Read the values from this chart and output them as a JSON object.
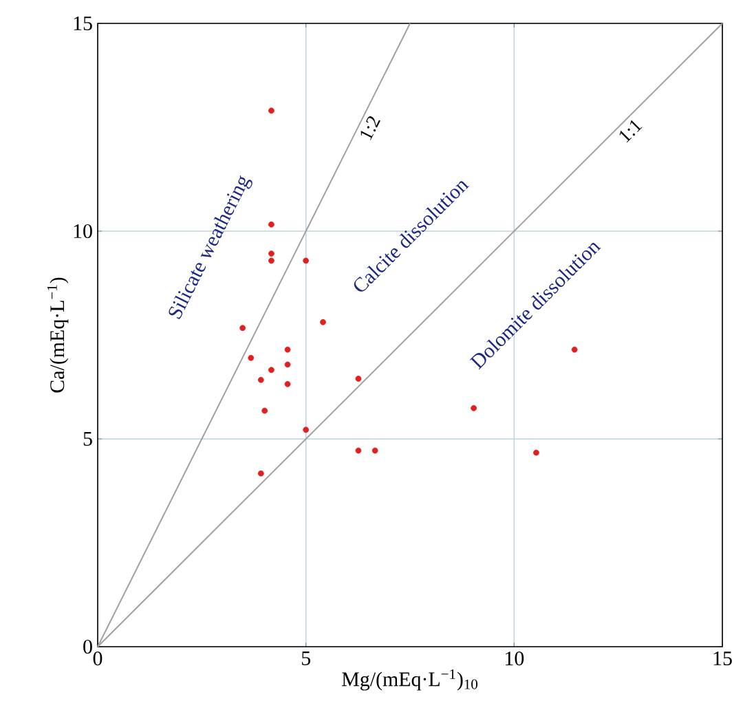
{
  "chart_data": {
    "type": "scatter",
    "xlabel": "Mg/(mEq·L$^{−1}$)$_{10}$",
    "ylabel": "Ca/(mEq·L$^{−1}$)",
    "xlim": [
      0,
      15
    ],
    "ylim": [
      0,
      15
    ],
    "xticks": [
      0,
      5,
      10,
      15
    ],
    "yticks": [
      0,
      5,
      10,
      15
    ],
    "grid": true,
    "series": [
      {
        "marker": "circle",
        "color": "#e02020",
        "x": [
          4.17,
          4.17,
          4.17,
          4.17,
          5.0,
          3.48,
          5.41,
          3.68,
          4.56,
          4.56,
          4.17,
          3.92,
          4.56,
          6.26,
          4.01,
          5.0,
          6.26,
          6.66,
          3.92,
          11.45,
          9.03,
          10.53
        ],
        "values": [
          12.9,
          10.16,
          9.46,
          9.29,
          9.29,
          7.67,
          7.81,
          6.95,
          7.15,
          6.79,
          6.66,
          6.42,
          6.32,
          6.45,
          5.68,
          5.22,
          4.72,
          4.72,
          4.17,
          7.15,
          5.74,
          4.67
        ]
      },
      {
        "type": "line",
        "marker": "none",
        "name": "1:2",
        "color": "#a0a0a0",
        "x": [
          0,
          7.5
        ],
        "values": [
          0,
          15
        ]
      },
      {
        "type": "line",
        "marker": "none",
        "name": "1:1",
        "color": "#a0a0a0",
        "x": [
          0,
          15
        ],
        "values": [
          0,
          15
        ]
      }
    ],
    "annotations": [
      "Silicate weathering",
      "Calcite dissolution",
      "Dolomite dissolution"
    ]
  }
}
